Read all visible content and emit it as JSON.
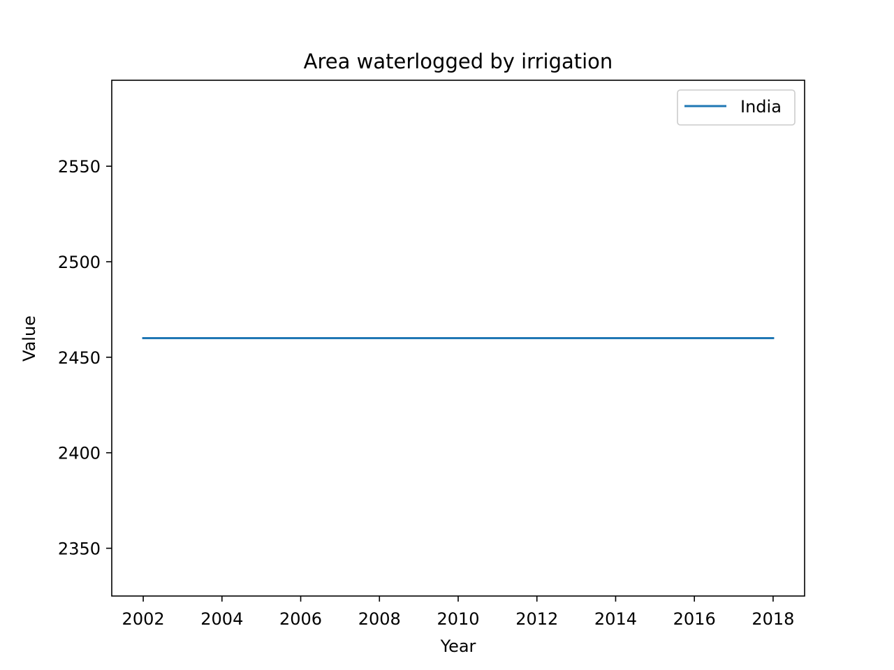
{
  "chart_data": {
    "type": "line",
    "title": "Area waterlogged by irrigation",
    "xlabel": "Year",
    "ylabel": "Value",
    "x": [
      2002,
      2018
    ],
    "series": [
      {
        "name": "India",
        "color": "#1f77b4",
        "values": [
          2460,
          2460
        ]
      }
    ],
    "xlim": [
      2001.2,
      2018.8
    ],
    "ylim": [
      2325,
      2595
    ],
    "xticks": [
      2002,
      2004,
      2006,
      2008,
      2010,
      2012,
      2014,
      2016,
      2018
    ],
    "yticks": [
      2350,
      2400,
      2450,
      2500,
      2550
    ],
    "grid": false,
    "legend_position": "upper-right"
  }
}
